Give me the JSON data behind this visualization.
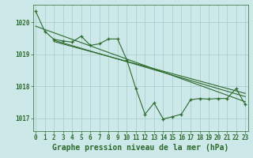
{
  "bg_color": "#cce8e8",
  "grid_color": "#aad0d0",
  "line_color": "#2d6a2d",
  "xlabel": "Graphe pression niveau de la mer (hPa)",
  "xlabel_fontsize": 7,
  "tick_fontsize": 5.5,
  "xlim": [
    -0.3,
    23.3
  ],
  "ylim": [
    1016.6,
    1020.55
  ],
  "yticks": [
    1017,
    1018,
    1019,
    1020
  ],
  "xticks": [
    0,
    1,
    2,
    3,
    4,
    5,
    6,
    7,
    8,
    9,
    10,
    11,
    12,
    13,
    14,
    15,
    16,
    17,
    18,
    19,
    20,
    21,
    22,
    23
  ],
  "main_series": [
    [
      0,
      1020.35
    ],
    [
      1,
      1019.72
    ],
    [
      2,
      1019.47
    ],
    [
      3,
      1019.42
    ],
    [
      4,
      1019.38
    ],
    [
      5,
      1019.57
    ],
    [
      6,
      1019.28
    ],
    [
      7,
      1019.33
    ],
    [
      8,
      1019.48
    ],
    [
      9,
      1019.48
    ],
    [
      10,
      1018.83
    ],
    [
      11,
      1017.93
    ],
    [
      12,
      1017.13
    ],
    [
      13,
      1017.48
    ],
    [
      14,
      1016.98
    ],
    [
      15,
      1017.05
    ],
    [
      16,
      1017.13
    ],
    [
      17,
      1017.58
    ],
    [
      18,
      1017.62
    ],
    [
      19,
      1017.6
    ],
    [
      20,
      1017.62
    ],
    [
      21,
      1017.62
    ],
    [
      22,
      1017.93
    ],
    [
      23,
      1017.43
    ]
  ],
  "trend_lines": [
    [
      [
        0,
        1019.88
      ],
      [
        23,
        1017.52
      ]
    ],
    [
      [
        2,
        1019.44
      ],
      [
        23,
        1017.68
      ]
    ],
    [
      [
        2,
        1019.4
      ],
      [
        23,
        1017.78
      ]
    ]
  ]
}
